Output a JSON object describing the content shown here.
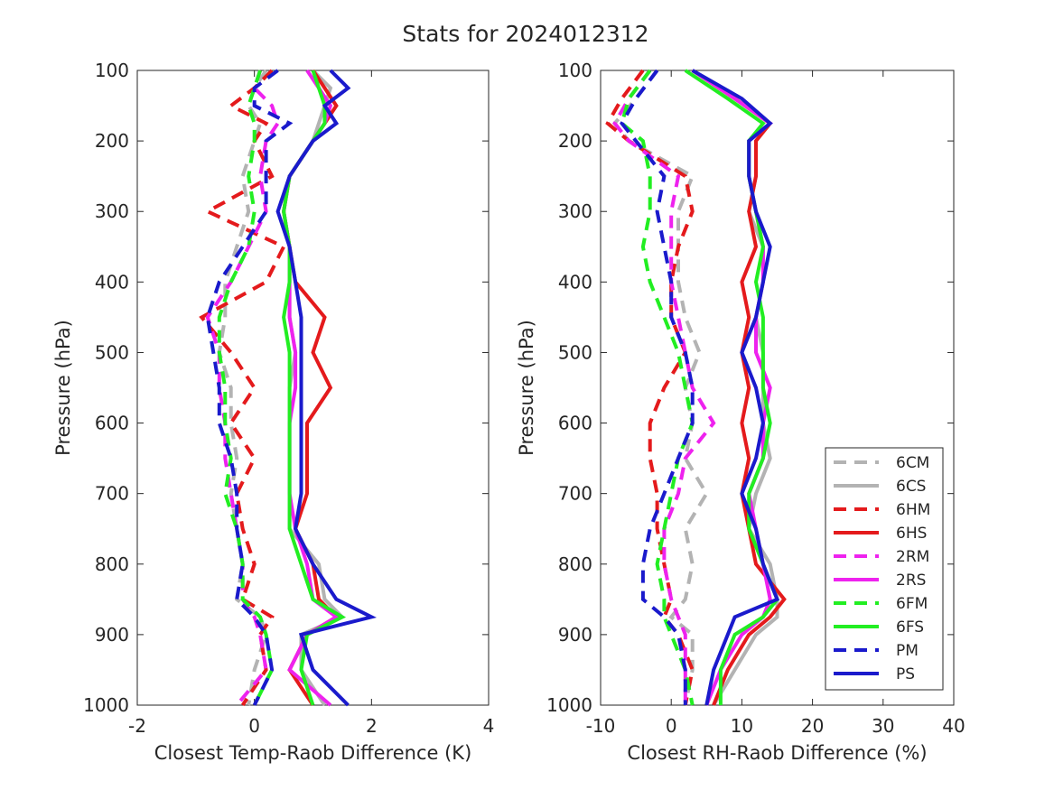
{
  "title": "Stats for 2024012312",
  "legend": {
    "entries": [
      {
        "label": "6CM",
        "color": "#b3b3b3",
        "dashed": true
      },
      {
        "label": "6CS",
        "color": "#b3b3b3",
        "dashed": false
      },
      {
        "label": "6HM",
        "color": "#e41a1c",
        "dashed": true
      },
      {
        "label": "6HS",
        "color": "#e41a1c",
        "dashed": false
      },
      {
        "label": "2RM",
        "color": "#ee22ee",
        "dashed": true
      },
      {
        "label": "2RS",
        "color": "#ee22ee",
        "dashed": false
      },
      {
        "label": "6FM",
        "color": "#22ee22",
        "dashed": true
      },
      {
        "label": "6FS",
        "color": "#22ee22",
        "dashed": false
      },
      {
        "label": "PM",
        "color": "#1a1acc",
        "dashed": true
      },
      {
        "label": "PS",
        "color": "#1a1acc",
        "dashed": false
      }
    ]
  },
  "chart_data": [
    {
      "type": "line",
      "xlabel": "Closest Temp-Raob Difference (K)",
      "ylabel": "Pressure (hPa)",
      "xlim": [
        -2,
        4
      ],
      "ylim": [
        100,
        1000
      ],
      "y_reversed": true,
      "xticks": [
        "-2",
        "0",
        "2",
        "4"
      ],
      "yticks": [
        "100",
        "200",
        "300",
        "400",
        "500",
        "600",
        "700",
        "800",
        "900",
        "1000"
      ],
      "pressure": [
        100,
        125,
        150,
        175,
        200,
        250,
        300,
        350,
        400,
        450,
        500,
        550,
        600,
        650,
        700,
        750,
        800,
        850,
        875,
        900,
        950,
        1000
      ],
      "series": [
        {
          "name": "6CM",
          "values": [
            0.2,
            0.0,
            -0.1,
            0.1,
            0.0,
            -0.2,
            -0.1,
            -0.3,
            -0.5,
            -0.5,
            -0.6,
            -0.4,
            -0.4,
            -0.3,
            -0.4,
            -0.3,
            -0.2,
            -0.3,
            0.1,
            0.2,
            0.0,
            -0.1
          ]
        },
        {
          "name": "6CS",
          "values": [
            1.0,
            1.3,
            1.2,
            1.1,
            1.0,
            0.6,
            0.5,
            0.6,
            0.6,
            0.6,
            0.7,
            0.6,
            0.6,
            0.6,
            0.6,
            0.6,
            1.1,
            1.2,
            1.5,
            0.8,
            0.8,
            1.2
          ]
        },
        {
          "name": "6HM",
          "values": [
            0.3,
            0.0,
            -0.4,
            0.2,
            0.0,
            0.3,
            -0.8,
            0.5,
            0.2,
            -0.9,
            -0.4,
            0.0,
            -0.4,
            0.0,
            -0.3,
            -0.2,
            0.0,
            -0.2,
            0.3,
            0.1,
            0.2,
            -0.2
          ]
        },
        {
          "name": "6HS",
          "values": [
            1.0,
            1.2,
            1.4,
            1.2,
            1.0,
            0.6,
            0.5,
            0.6,
            0.7,
            1.2,
            1.0,
            1.3,
            0.9,
            0.9,
            0.9,
            0.7,
            1.0,
            1.1,
            1.4,
            0.9,
            0.6,
            1.0
          ]
        },
        {
          "name": "2RM",
          "values": [
            0.1,
            0.0,
            0.3,
            0.4,
            0.2,
            0.1,
            0.2,
            -0.1,
            -0.4,
            -0.8,
            -0.6,
            -0.6,
            -0.5,
            -0.5,
            -0.4,
            -0.3,
            -0.2,
            -0.2,
            0.0,
            0.1,
            0.2,
            -0.3
          ]
        },
        {
          "name": "2RS",
          "values": [
            0.9,
            1.1,
            1.3,
            1.2,
            1.0,
            0.6,
            0.5,
            0.6,
            0.6,
            0.6,
            0.7,
            0.7,
            0.6,
            0.6,
            0.6,
            0.7,
            0.9,
            1.0,
            1.4,
            0.9,
            0.6,
            1.3
          ]
        },
        {
          "name": "6FM",
          "values": [
            0.1,
            0.0,
            -0.1,
            0.0,
            0.0,
            -0.1,
            0.0,
            -0.1,
            -0.4,
            -0.6,
            -0.6,
            -0.5,
            -0.5,
            -0.4,
            -0.5,
            -0.3,
            -0.2,
            -0.2,
            0.1,
            0.2,
            0.3,
            0.0
          ]
        },
        {
          "name": "6FS",
          "values": [
            1.0,
            1.1,
            1.2,
            1.2,
            1.0,
            0.6,
            0.5,
            0.6,
            0.6,
            0.5,
            0.6,
            0.6,
            0.6,
            0.6,
            0.6,
            0.6,
            0.8,
            1.0,
            1.5,
            0.9,
            0.8,
            1.0
          ]
        },
        {
          "name": "PM",
          "values": [
            0.4,
            0.0,
            0.0,
            0.6,
            0.2,
            0.2,
            0.2,
            -0.2,
            -0.6,
            -0.8,
            -0.7,
            -0.6,
            -0.6,
            -0.4,
            -0.3,
            -0.3,
            -0.2,
            -0.3,
            0.0,
            0.2,
            0.3,
            0.0
          ]
        },
        {
          "name": "PS",
          "values": [
            1.3,
            1.6,
            1.2,
            1.4,
            1.0,
            0.6,
            0.4,
            0.6,
            0.7,
            0.8,
            0.8,
            0.8,
            0.8,
            0.8,
            0.8,
            0.7,
            1.0,
            1.4,
            2.0,
            0.8,
            1.0,
            1.6
          ]
        }
      ]
    },
    {
      "type": "line",
      "xlabel": "Closest RH-Raob Difference (%)",
      "ylabel": "Pressure (hPa)",
      "xlim": [
        -10,
        40
      ],
      "ylim": [
        100,
        1000
      ],
      "y_reversed": true,
      "xticks": [
        "-10",
        "0",
        "10",
        "20",
        "30",
        "40"
      ],
      "yticks": [
        "100",
        "200",
        "300",
        "400",
        "500",
        "600",
        "700",
        "800",
        "900",
        "1000"
      ],
      "pressure": [
        100,
        140,
        175,
        200,
        250,
        300,
        350,
        400,
        450,
        500,
        550,
        600,
        650,
        700,
        750,
        800,
        850,
        875,
        900,
        950,
        1000
      ],
      "series": [
        {
          "name": "6CM",
          "values": [
            -2,
            -5,
            -8,
            -6,
            3,
            1,
            1,
            1,
            2,
            4,
            2,
            3,
            2,
            5,
            2,
            3,
            2,
            0,
            3,
            3,
            2
          ]
        },
        {
          "name": "6CS",
          "values": [
            3,
            9,
            14,
            12,
            12,
            11,
            13,
            13,
            12,
            13,
            13,
            13,
            14,
            12,
            11,
            14,
            15,
            15,
            12,
            9,
            6
          ]
        },
        {
          "name": "6HM",
          "values": [
            -4,
            -7,
            -9,
            -6,
            2,
            3,
            1,
            0,
            0,
            2,
            -1,
            -3,
            -3,
            -2,
            -2,
            -1,
            0,
            -1,
            1,
            3,
            2
          ]
        },
        {
          "name": "6HS",
          "values": [
            3,
            9,
            14,
            12,
            12,
            11,
            12,
            10,
            11,
            10,
            11,
            10,
            11,
            10,
            11,
            12,
            16,
            14,
            11,
            8,
            6
          ]
        },
        {
          "name": "2RM",
          "values": [
            -3,
            -6,
            -8,
            -6,
            1,
            0,
            0,
            0,
            1,
            2,
            3,
            6,
            2,
            1,
            -1,
            -1,
            0,
            1,
            2,
            2,
            2
          ]
        },
        {
          "name": "2RS",
          "values": [
            3,
            9,
            14,
            11,
            11,
            12,
            13,
            13,
            12,
            12,
            14,
            13,
            13,
            11,
            12,
            13,
            14,
            13,
            10,
            7,
            5
          ]
        },
        {
          "name": "6FM",
          "values": [
            -3,
            -6,
            -7,
            -4,
            -3,
            -3,
            -4,
            -3,
            -1,
            1,
            2,
            3,
            1,
            0,
            -1,
            -2,
            -1,
            -1,
            0,
            2,
            3
          ]
        },
        {
          "name": "6FS",
          "values": [
            2,
            8,
            13,
            11,
            11,
            12,
            13,
            12,
            13,
            13,
            13,
            14,
            13,
            11,
            11,
            13,
            15,
            13,
            9,
            7,
            7
          ]
        },
        {
          "name": "PM",
          "values": [
            -2,
            -5,
            -7,
            -5,
            -1,
            -2,
            -1,
            0,
            0,
            2,
            3,
            3,
            1,
            -1,
            -3,
            -4,
            -4,
            -1,
            1,
            2,
            2
          ]
        },
        {
          "name": "PS",
          "values": [
            3,
            10,
            14,
            11,
            11,
            12,
            14,
            13,
            12,
            10,
            12,
            13,
            12,
            10,
            12,
            13,
            15,
            9,
            8,
            6,
            5
          ]
        }
      ]
    }
  ]
}
